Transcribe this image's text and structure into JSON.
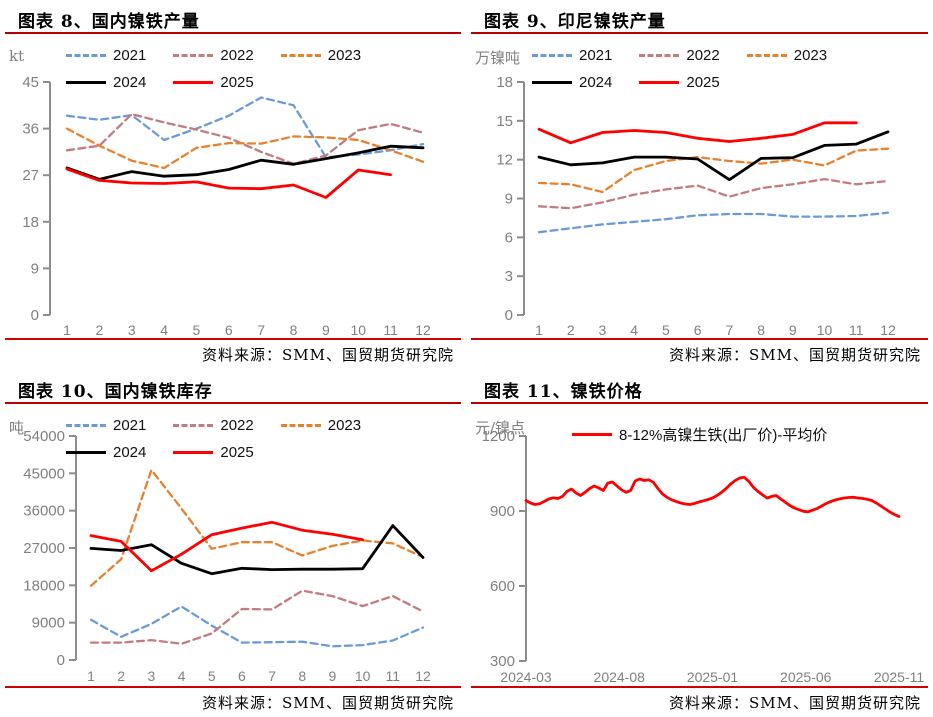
{
  "source_note": "资料来源：SMM、国贸期货研究院",
  "chart_data": [
    {
      "id": "figure-8",
      "type": "line",
      "title": "图表 8、国内镍铁产量",
      "ylabel": "kt",
      "xlabel": "",
      "ylim": [
        0,
        45
      ],
      "yticks": [
        0,
        9,
        18,
        27,
        36,
        45
      ],
      "grid": false,
      "legend_position": "top",
      "categories": [
        "1",
        "2",
        "3",
        "4",
        "5",
        "6",
        "7",
        "8",
        "9",
        "10",
        "11",
        "12"
      ],
      "series": [
        {
          "name": "2021",
          "color": "#6B9BD7",
          "dash": true,
          "values": [
            38.5,
            37.7,
            38.6,
            33.8,
            36.0,
            38.5,
            42.0,
            40.5,
            30.5,
            31.0,
            31.8,
            33.0
          ]
        },
        {
          "name": "2022",
          "color": "#C27B7F",
          "dash": true,
          "values": [
            31.8,
            32.7,
            38.8,
            37.2,
            35.8,
            34.2,
            31.5,
            29.2,
            30.8,
            35.7,
            36.9,
            35.2
          ]
        },
        {
          "name": "2023",
          "color": "#E8812D",
          "dash": true,
          "values": [
            36.0,
            32.7,
            29.8,
            28.4,
            32.3,
            33.2,
            33.1,
            34.5,
            34.3,
            33.8,
            31.8,
            29.6
          ]
        },
        {
          "name": "2024",
          "color": "#000000",
          "dash": false,
          "values": [
            28.4,
            26.2,
            27.7,
            26.8,
            27.1,
            28.1,
            29.9,
            29.1,
            30.2,
            31.3,
            32.6,
            32.3
          ]
        },
        {
          "name": "2025",
          "color": "#FF0000",
          "dash": false,
          "values": [
            28.2,
            26.0,
            25.5,
            25.4,
            25.7,
            24.5,
            24.4,
            25.1,
            22.7,
            28.0,
            27.1
          ]
        }
      ]
    },
    {
      "id": "figure-9",
      "type": "line",
      "title": "图表 9、印尼镍铁产量",
      "ylabel": "万镍吨",
      "xlabel": "",
      "ylim": [
        0,
        18
      ],
      "yticks": [
        0,
        3,
        6,
        9,
        12,
        15,
        18
      ],
      "grid": false,
      "legend_position": "top",
      "categories": [
        "1",
        "2",
        "3",
        "4",
        "5",
        "6",
        "7",
        "8",
        "9",
        "10",
        "11",
        "12"
      ],
      "series": [
        {
          "name": "2021",
          "color": "#6B9BD7",
          "dash": true,
          "values": [
            6.4,
            6.7,
            7.0,
            7.2,
            7.4,
            7.7,
            7.8,
            7.8,
            7.6,
            7.6,
            7.65,
            7.9
          ]
        },
        {
          "name": "2022",
          "color": "#C27B7F",
          "dash": true,
          "values": [
            8.4,
            8.25,
            8.7,
            9.3,
            9.7,
            10.0,
            9.15,
            9.8,
            10.1,
            10.5,
            10.1,
            10.35
          ]
        },
        {
          "name": "2023",
          "color": "#E8812D",
          "dash": true,
          "values": [
            10.2,
            10.1,
            9.5,
            11.2,
            11.9,
            12.2,
            11.9,
            11.7,
            12.0,
            11.55,
            12.7,
            12.85
          ]
        },
        {
          "name": "2024",
          "color": "#000000",
          "dash": false,
          "values": [
            12.2,
            11.6,
            11.75,
            12.2,
            12.2,
            12.05,
            10.45,
            12.1,
            12.15,
            13.1,
            13.2,
            14.15
          ]
        },
        {
          "name": "2025",
          "color": "#FF0000",
          "dash": false,
          "values": [
            14.35,
            13.3,
            14.1,
            14.25,
            14.1,
            13.65,
            13.4,
            13.65,
            13.95,
            14.85,
            14.85
          ]
        }
      ]
    },
    {
      "id": "figure-10",
      "type": "line",
      "title": "图表 10、国内镍铁库存",
      "ylabel": "吨",
      "xlabel": "",
      "ylim": [
        0,
        54000
      ],
      "yticks": [
        0,
        9000,
        18000,
        27000,
        36000,
        45000,
        54000
      ],
      "grid": false,
      "legend_position": "top",
      "categories": [
        "1",
        "2",
        "3",
        "4",
        "5",
        "6",
        "7",
        "8",
        "9",
        "10",
        "11",
        "12"
      ],
      "series": [
        {
          "name": "2021",
          "color": "#6B9BD7",
          "dash": true,
          "values": [
            9700,
            5600,
            8700,
            12900,
            8300,
            4200,
            4300,
            4400,
            3300,
            3600,
            4700,
            7800
          ]
        },
        {
          "name": "2022",
          "color": "#C27B7F",
          "dash": true,
          "values": [
            4200,
            4200,
            4800,
            3900,
            6400,
            12300,
            12200,
            16700,
            15400,
            13000,
            15400,
            11700
          ]
        },
        {
          "name": "2023",
          "color": "#E8812D",
          "dash": true,
          "values": [
            17900,
            24300,
            45800,
            36500,
            26800,
            28400,
            28400,
            25200,
            27500,
            28800,
            28100,
            24800
          ]
        },
        {
          "name": "2024",
          "color": "#000000",
          "dash": false,
          "values": [
            26900,
            26400,
            27800,
            23300,
            20800,
            22100,
            21800,
            21900,
            21900,
            22000,
            32400,
            24700
          ]
        },
        {
          "name": "2025",
          "color": "#FF0000",
          "dash": false,
          "values": [
            30000,
            28600,
            21500,
            25500,
            30200,
            31800,
            33200,
            31300,
            30300,
            29000
          ]
        }
      ]
    },
    {
      "id": "figure-11",
      "type": "line",
      "title": "图表 11、镍铁价格",
      "ylabel": "元/镍点",
      "xlabel": "",
      "ylim": [
        300,
        1200
      ],
      "yticks": [
        300,
        600,
        900,
        1200
      ],
      "grid": false,
      "legend_position": "top",
      "x_ticks": [
        "2024-03",
        "2024-08",
        "2025-01",
        "2025-06",
        "2025-11"
      ],
      "series": [
        {
          "name": "8-12%高镍生铁(出厂价)-平均价",
          "color": "#FF0000",
          "dash": false,
          "values": [
            942,
            932,
            926,
            929,
            938,
            948,
            953,
            950,
            958,
            978,
            988,
            972,
            962,
            975,
            990,
            1000,
            992,
            982,
            1012,
            1016,
            1000,
            985,
            975,
            982,
            1020,
            1028,
            1022,
            1025,
            1015,
            990,
            968,
            955,
            945,
            938,
            932,
            928,
            926,
            930,
            936,
            941,
            946,
            952,
            962,
            975,
            990,
            1008,
            1022,
            1032,
            1035,
            1018,
            995,
            978,
            965,
            952,
            958,
            962,
            948,
            935,
            922,
            912,
            905,
            899,
            897,
            903,
            910,
            920,
            930,
            938,
            944,
            949,
            952,
            954,
            955,
            952,
            950,
            947,
            942,
            932,
            920,
            908,
            896,
            886,
            878
          ]
        }
      ]
    }
  ]
}
